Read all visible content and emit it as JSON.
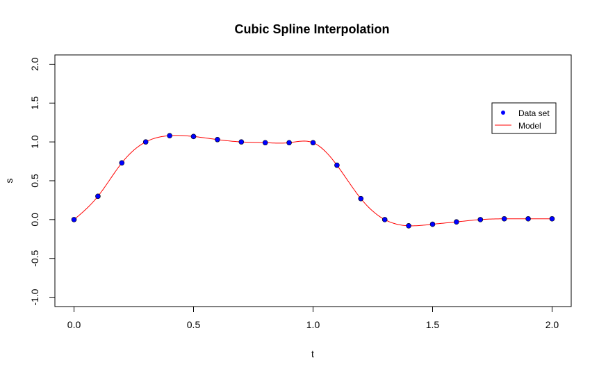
{
  "chart_data": {
    "type": "line",
    "title": "Cubic Spline Interpolation",
    "xlabel": "t",
    "ylabel": "s",
    "xlim": [
      -0.08,
      2.08
    ],
    "ylim": [
      -1.12,
      2.12
    ],
    "x_ticks": [
      0.0,
      0.5,
      1.0,
      1.5,
      2.0
    ],
    "x_tick_labels": [
      "0.0",
      "0.5",
      "1.0",
      "1.5",
      "2.0"
    ],
    "y_ticks": [
      -1.0,
      -0.5,
      0.0,
      0.5,
      1.0,
      1.5,
      2.0
    ],
    "y_tick_labels": [
      "-1.0",
      "-0.5",
      "0.0",
      "0.5",
      "1.0",
      "1.5",
      "2.0"
    ],
    "grid": false,
    "legend": {
      "position": "right",
      "entries": [
        {
          "label": "Data set",
          "kind": "points",
          "color": "#0000ff"
        },
        {
          "label": "Model",
          "kind": "line",
          "color": "#ff0000"
        }
      ]
    },
    "series": [
      {
        "name": "Data set",
        "kind": "points",
        "color": "#0000ff",
        "x": [
          0.0,
          0.1,
          0.2,
          0.3,
          0.4,
          0.5,
          0.6,
          0.7,
          0.8,
          0.9,
          1.0,
          1.1,
          1.2,
          1.3,
          1.4,
          1.5,
          1.6,
          1.7,
          1.8,
          1.9,
          2.0
        ],
        "y": [
          0.0,
          0.3,
          0.73,
          1.0,
          1.08,
          1.07,
          1.03,
          1.0,
          0.99,
          0.99,
          0.99,
          0.7,
          0.27,
          0.0,
          -0.08,
          -0.06,
          -0.03,
          0.0,
          0.01,
          0.01,
          0.01
        ]
      },
      {
        "name": "Model",
        "kind": "line",
        "color": "#ff0000",
        "interpolation": "cubic-spline"
      }
    ]
  }
}
